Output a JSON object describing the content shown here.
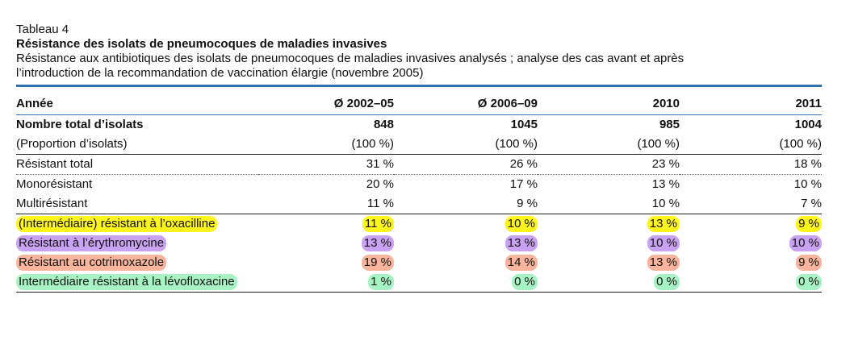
{
  "table_label": "Tableau 4",
  "title": "Résistance des isolats de pneumocoques de maladies invasives",
  "subtitle_line1": "Résistance aux antibiotiques des isolats de pneumocoques de maladies invasives analysés ; analyse des cas avant et après",
  "subtitle_line2": "l’introduction de la recommandation de vaccination élargie (novembre 2005)",
  "headers": [
    "Année",
    "Ø 2002–05",
    "Ø 2006–09",
    "2010",
    "2011"
  ],
  "rows": [
    {
      "label": "Nombre total d’isolats",
      "values": [
        "848",
        "1045",
        "985",
        "1004"
      ]
    },
    {
      "label": "(Proportion d’isolats)",
      "values": [
        "(100 %)",
        "(100 %)",
        "(100 %)",
        "(100 %)"
      ]
    },
    {
      "label": "Résistant total",
      "values": [
        "31 %",
        "26 %",
        "23 %",
        "18 %"
      ]
    },
    {
      "label": "Monorésistant",
      "values": [
        "20 %",
        "17 %",
        "13 %",
        "10 %"
      ]
    },
    {
      "label": "Multirésistant",
      "values": [
        "11 %",
        "9 %",
        "10 %",
        "7 %"
      ]
    },
    {
      "label": "(Intermédiaire) résistant à l’oxacilline",
      "values": [
        "11 %",
        "10 %",
        "13 %",
        "9 %"
      ],
      "highlight": "#fdf51b"
    },
    {
      "label": "Résistant à l’érythromycine",
      "values": [
        "13 %",
        "13 %",
        "10 %",
        "10 %"
      ],
      "highlight": "#c9a2f2"
    },
    {
      "label": "Résistant au cotrimoxazole",
      "values": [
        "19 %",
        "14 %",
        "13 %",
        "9 %"
      ],
      "highlight": "#f8b49c"
    },
    {
      "label": "Intermédiaire résistant à la lévofloxacine",
      "values": [
        "1 %",
        "0 %",
        "0 %",
        "0 %"
      ],
      "highlight": "#a8f3c3"
    }
  ],
  "colors": {
    "rule": "#2f6fb3",
    "text": "#111111"
  }
}
